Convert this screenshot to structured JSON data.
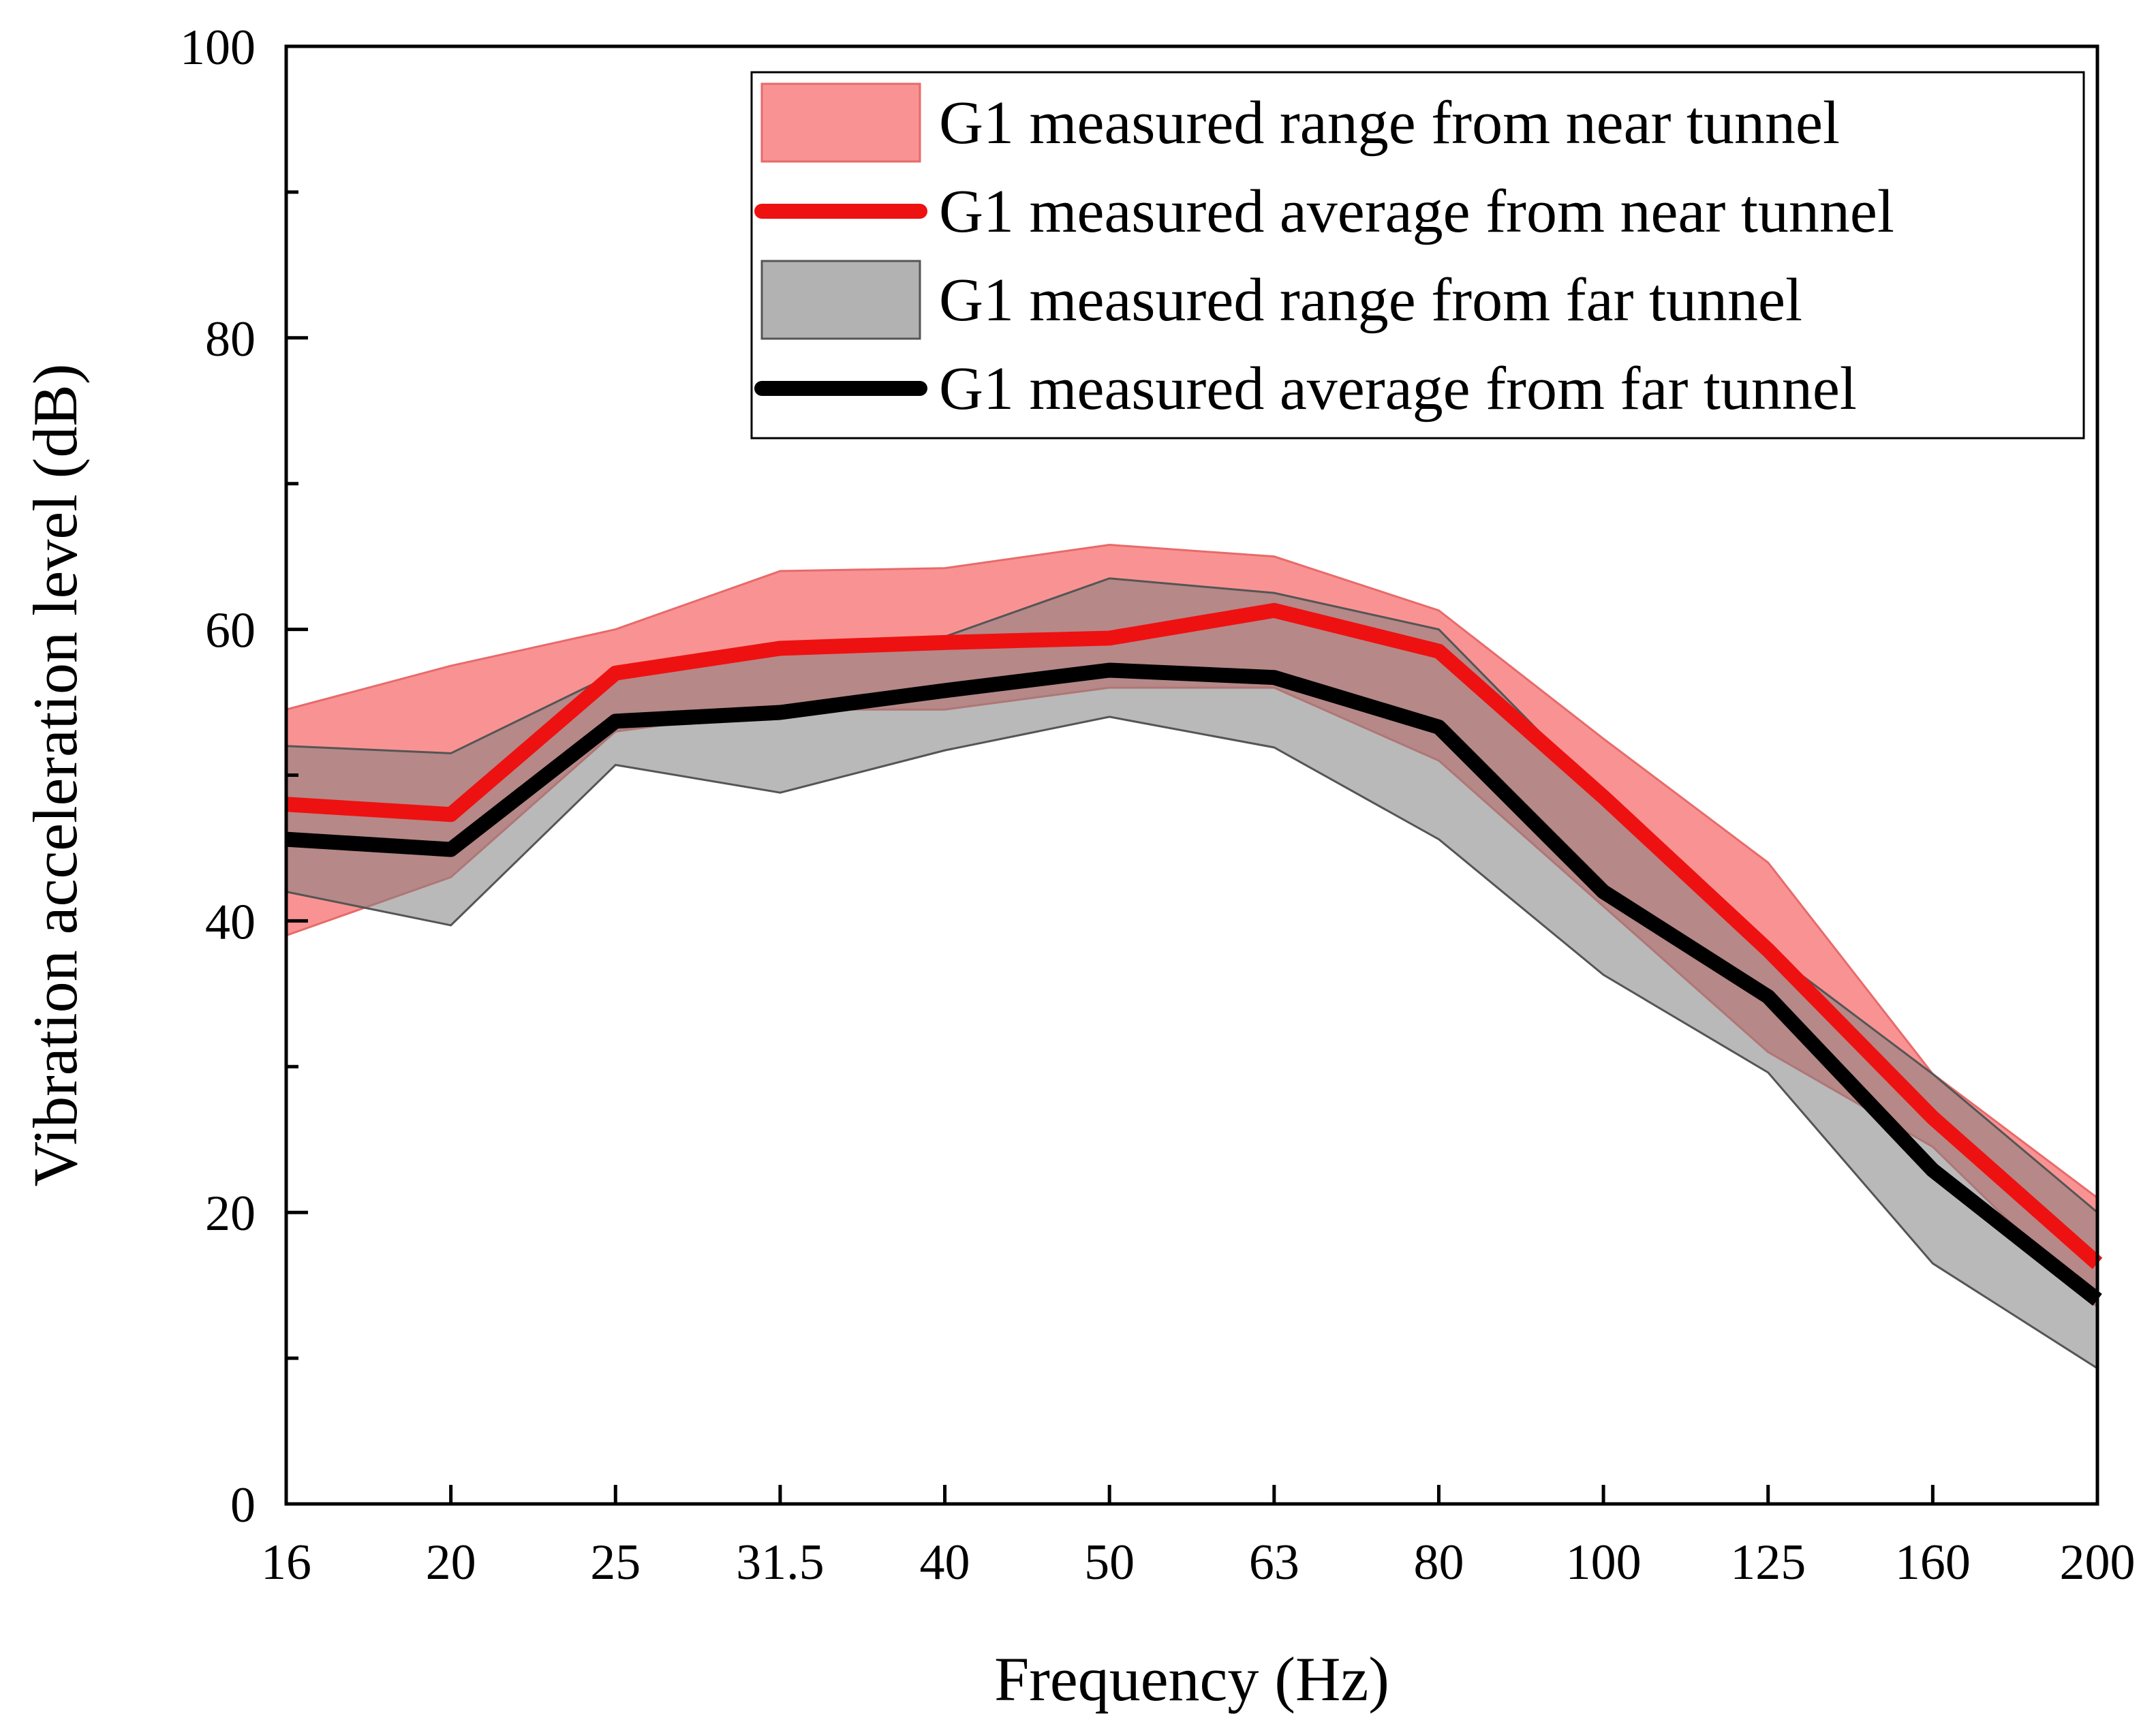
{
  "chart_data": {
    "type": "line",
    "title": "",
    "xlabel": "Frequency (Hz)",
    "ylabel": "Vibration acceleration level (dB)",
    "categories": [
      "16",
      "20",
      "25",
      "31.5",
      "40",
      "50",
      "63",
      "80",
      "100",
      "125",
      "160",
      "200"
    ],
    "ylim": [
      0,
      100
    ],
    "yticks": [
      "0",
      "20",
      "40",
      "60",
      "80",
      "100"
    ],
    "grid": false,
    "legend_position": "top-right",
    "colors": {
      "near_fill": "#f87878",
      "near_line": "#ee1111",
      "far_fill": "#7f7f7f",
      "far_line": "#000000",
      "axis": "#000000"
    },
    "series": [
      {
        "name": "G1 measured range from near tunnel",
        "kind": "band",
        "upper": [
          54.5,
          57.5,
          60.0,
          64.0,
          64.2,
          65.8,
          65.0,
          61.3,
          52.5,
          44.0,
          29.5,
          21.0
        ],
        "lower": [
          39.0,
          43.0,
          53.0,
          54.5,
          54.5,
          56.0,
          56.0,
          51.0,
          41.0,
          31.0,
          24.5,
          13.5
        ]
      },
      {
        "name": "G1 measured average from near tunnel",
        "kind": "line",
        "values": [
          48.0,
          47.3,
          57.0,
          58.7,
          59.1,
          59.4,
          61.3,
          58.5,
          48.5,
          38.0,
          26.5,
          16.5
        ]
      },
      {
        "name": "G1 measured range from far tunnel",
        "kind": "band",
        "upper": [
          52.0,
          51.5,
          57.0,
          59.0,
          59.5,
          63.5,
          62.5,
          60.0,
          48.5,
          38.0,
          29.5,
          20.0
        ],
        "lower": [
          42.0,
          39.7,
          50.7,
          48.8,
          51.7,
          54.0,
          51.9,
          45.6,
          36.3,
          29.6,
          16.5,
          9.3
        ]
      },
      {
        "name": "G1 measured average from far tunnel",
        "kind": "line",
        "values": [
          45.6,
          44.9,
          53.7,
          54.3,
          55.8,
          57.2,
          56.7,
          53.3,
          42.0,
          34.8,
          22.9,
          14.0
        ]
      }
    ]
  }
}
